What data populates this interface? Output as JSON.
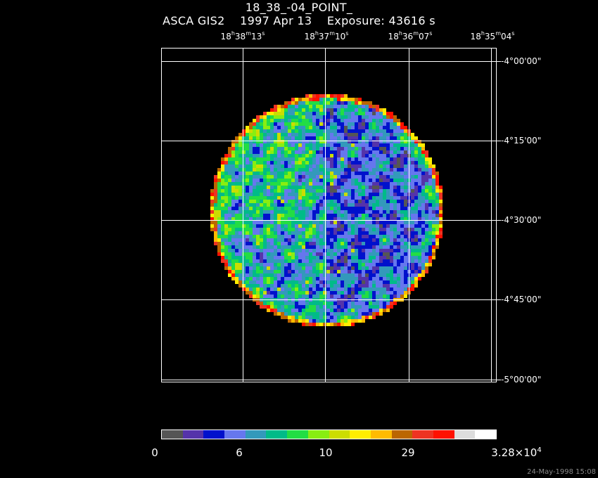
{
  "header": {
    "title": "18_38_-04_POINT_",
    "subtitle": "ASCA GIS2    1997 Apr 13    Exposure: 43616 s"
  },
  "ra_labels": [
    {
      "h": "18",
      "m": "38",
      "s": "13"
    },
    {
      "h": "18",
      "m": "37",
      "s": "10"
    },
    {
      "h": "18",
      "m": "36",
      "s": "07"
    },
    {
      "h": "18",
      "m": "35",
      "s": "04"
    }
  ],
  "dec_labels": [
    "-4°00'00\"",
    "-4°15'00\"",
    "-4°30'00\"",
    "-4°45'00\"",
    "-5°00'00\""
  ],
  "colorbar": {
    "colors": [
      "#555555",
      "#5533aa",
      "#0011cc",
      "#6677ee",
      "#3399bb",
      "#00bb88",
      "#22dd44",
      "#88ee11",
      "#ccdd00",
      "#ffee00",
      "#ffbb00",
      "#bb6600",
      "#ee3322",
      "#ff1100",
      "#dddddd",
      "#ffffff"
    ],
    "labels": [
      "0",
      "6",
      "10",
      "29"
    ],
    "max_label_base": "3.28×10",
    "max_label_exp": "4"
  },
  "timestamp": "24-May-1998 15:08"
}
